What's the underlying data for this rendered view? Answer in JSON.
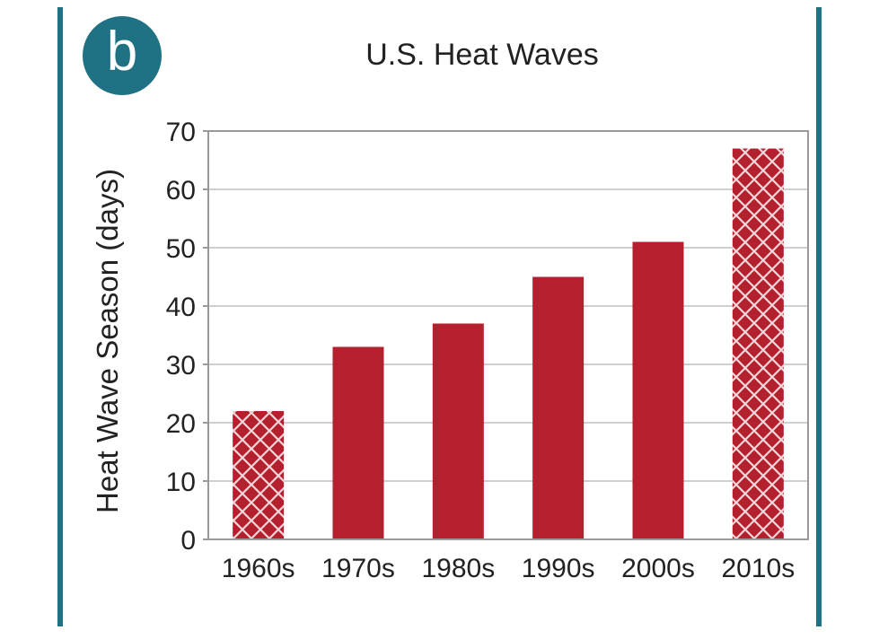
{
  "panel": {
    "badge_letter": "b"
  },
  "chart_data": {
    "type": "bar",
    "title": "U.S. Heat Waves",
    "xlabel": "",
    "ylabel": "Heat Wave Season (days)",
    "categories": [
      "1960s",
      "1970s",
      "1980s",
      "1990s",
      "2000s",
      "2010s"
    ],
    "values": [
      22,
      33,
      37,
      45,
      51,
      67
    ],
    "hatched": [
      true,
      false,
      false,
      false,
      false,
      true
    ],
    "ylim": [
      0,
      70
    ],
    "yticks": [
      0,
      10,
      20,
      30,
      40,
      50,
      60,
      70
    ],
    "grid": true,
    "colors": {
      "bar": "#b5202e",
      "accent": "#1f7283",
      "grid": "#cfcfcf",
      "axis": "#9a9a9a"
    }
  }
}
